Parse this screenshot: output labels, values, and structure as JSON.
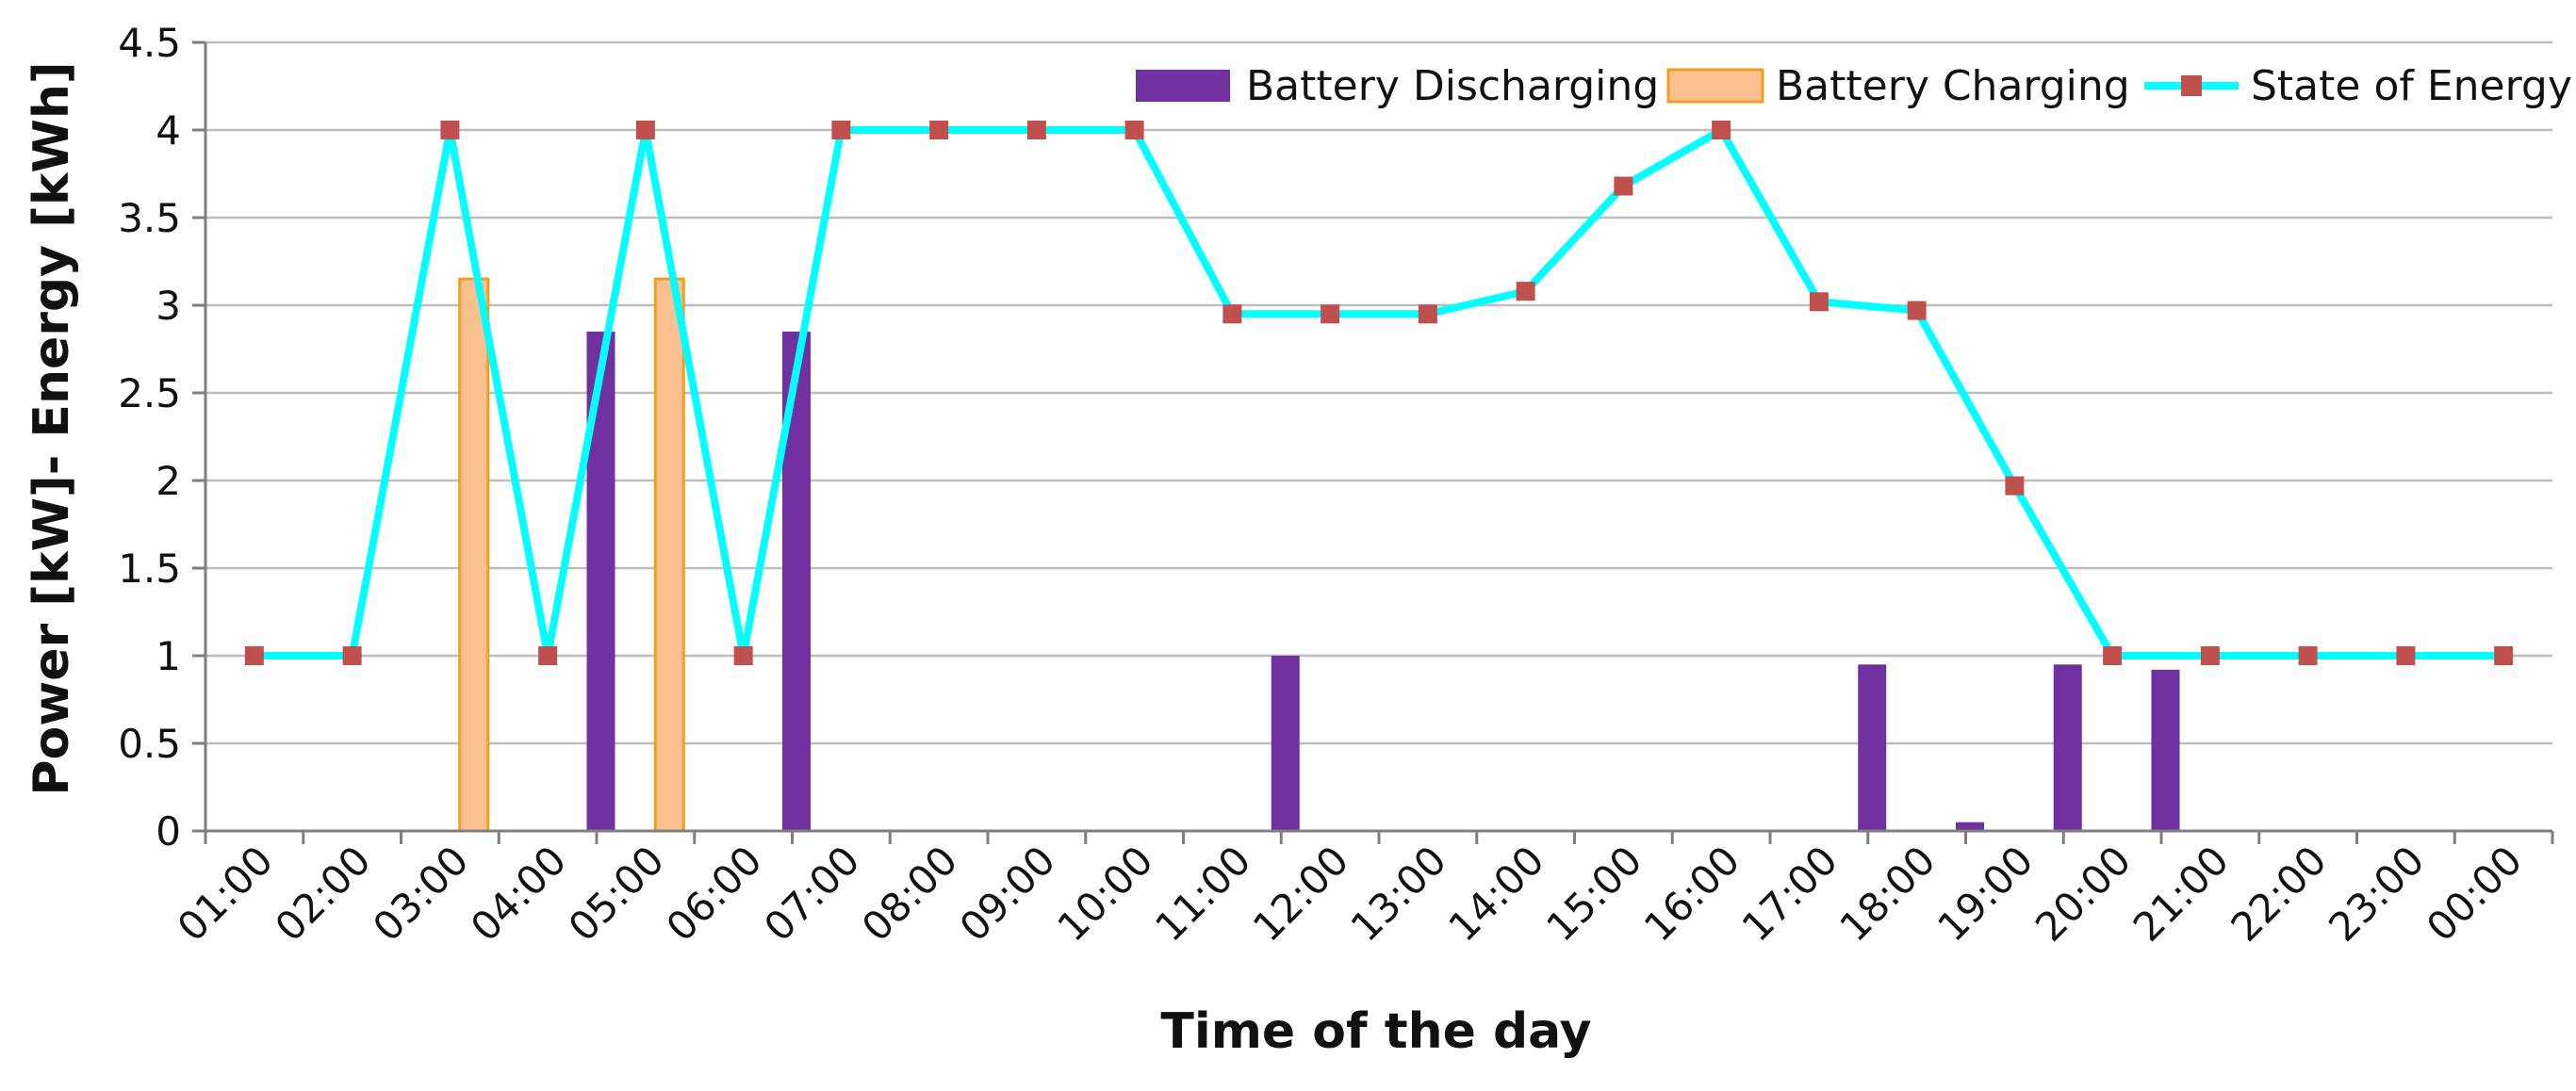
{
  "chart_data": {
    "type": "bar",
    "xlabel": "Time of the day",
    "ylabel": "Power [kW]- Energy [kWh]",
    "ylim": [
      0,
      4.5
    ],
    "yticks": [
      0,
      0.5,
      1,
      1.5,
      2,
      2.5,
      3,
      3.5,
      4,
      4.5
    ],
    "ytick_labels": [
      "0",
      "0.5",
      "1",
      "1.5",
      "2",
      "2.5",
      "3",
      "3.5",
      "4",
      "4.5"
    ],
    "grid": true,
    "legend_position": "top-right",
    "categories": [
      "01:00",
      "02:00",
      "03:00",
      "04:00",
      "05:00",
      "06:00",
      "07:00",
      "08:00",
      "09:00",
      "10:00",
      "11:00",
      "12:00",
      "13:00",
      "14:00",
      "15:00",
      "16:00",
      "17:00",
      "18:00",
      "19:00",
      "20:00",
      "21:00",
      "22:00",
      "23:00",
      "00:00"
    ],
    "series": [
      {
        "name": "Battery Discharging",
        "type": "bar",
        "color": "#7030a0",
        "values": [
          0,
          0,
          0,
          2.85,
          0,
          2.85,
          0,
          0,
          0,
          0,
          1.0,
          0,
          0,
          0,
          0,
          0,
          0.95,
          0.05,
          0.95,
          0.92,
          0,
          0,
          0,
          0
        ]
      },
      {
        "name": "Battery Charging",
        "type": "bar",
        "color": "#fac090",
        "edge_color": "#f0a020",
        "values": [
          0,
          0,
          3.15,
          0,
          3.15,
          0,
          0,
          0,
          0,
          0,
          0,
          0,
          0,
          0,
          0,
          0,
          0,
          0,
          0,
          0,
          0,
          0,
          0,
          0
        ]
      },
      {
        "name": "State of Energy",
        "type": "line",
        "color": "#00ffff",
        "marker_color": "#c0504d",
        "values": [
          1,
          1,
          4,
          1,
          4,
          1,
          4,
          4,
          4,
          4,
          2.95,
          2.95,
          2.95,
          3.08,
          3.68,
          4,
          3.02,
          2.97,
          1.97,
          1,
          1,
          1,
          1,
          1
        ]
      }
    ]
  }
}
